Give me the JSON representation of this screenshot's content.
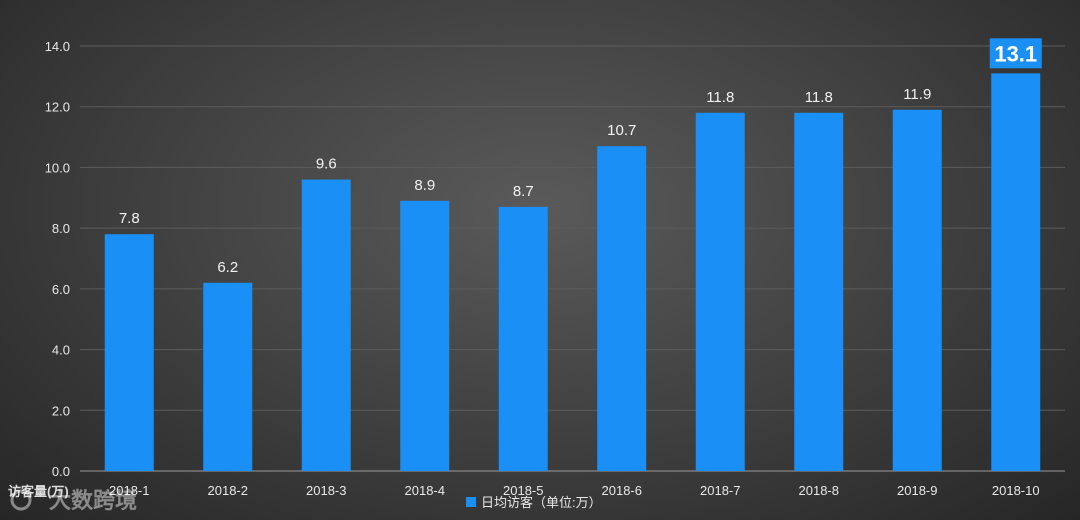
{
  "chart_data": {
    "type": "bar",
    "categories": [
      "2018-1",
      "2018-2",
      "2018-3",
      "2018-4",
      "2018-5",
      "2018-6",
      "2018-7",
      "2018-8",
      "2018-9",
      "2018-10"
    ],
    "series": [
      {
        "name": "日均访客（单位:万）",
        "values": [
          7.8,
          6.2,
          9.6,
          8.9,
          8.7,
          10.7,
          11.8,
          11.8,
          11.9,
          13.1
        ]
      }
    ],
    "ylabel": "访客量(万)",
    "ylim": [
      0,
      14
    ],
    "yticks": [
      "0.0",
      "2.0",
      "4.0",
      "6.0",
      "8.0",
      "10.0",
      "12.0",
      "14.0"
    ],
    "grid": true,
    "legend_position": "bottom-center",
    "highlight_index": 9,
    "colors": {
      "bar": "#1a8ff5",
      "highlight_label_bg": "#1a8ff5",
      "grid": "#5c5c5c",
      "axis": "#9a9a9a"
    }
  },
  "watermark": {
    "text": "大数跨境",
    "icon": "logo-icon"
  }
}
